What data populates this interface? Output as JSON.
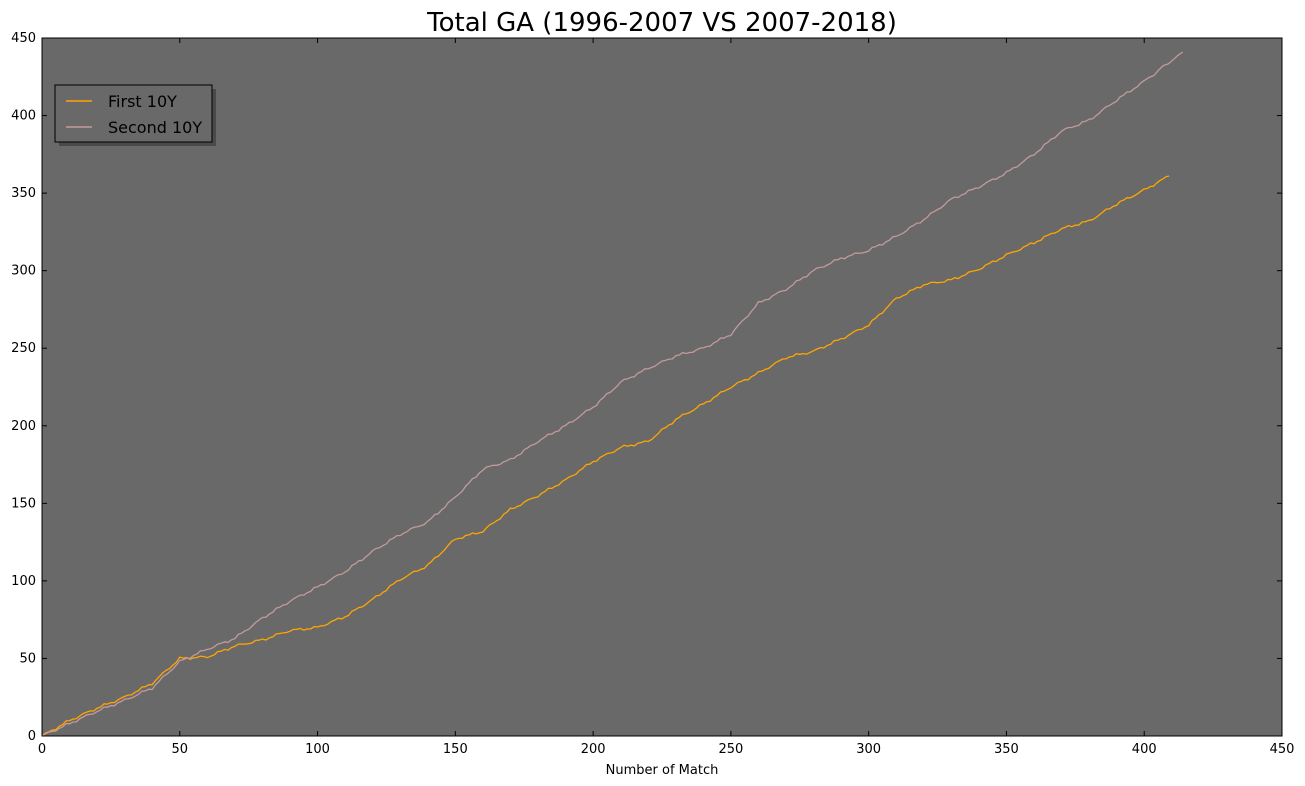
{
  "chart_data": {
    "type": "line",
    "title": "Total GA (1996-2007 VS 2007-2018)",
    "xlabel": "Number of Match",
    "ylabel": "",
    "xlim": [
      0,
      450
    ],
    "ylim": [
      0,
      450
    ],
    "xticks": [
      0,
      50,
      100,
      150,
      200,
      250,
      300,
      350,
      400,
      450
    ],
    "yticks": [
      0,
      50,
      100,
      150,
      200,
      250,
      300,
      350,
      400,
      450
    ],
    "grid": false,
    "legend_placement": "upper-left",
    "background_color": "#696969",
    "series": [
      {
        "name": "First 10Y",
        "color": "#FFA500",
        "x": [
          0,
          10,
          20,
          30,
          40,
          50,
          60,
          70,
          80,
          90,
          100,
          110,
          120,
          130,
          140,
          150,
          160,
          170,
          180,
          190,
          200,
          210,
          220,
          230,
          240,
          250,
          260,
          270,
          280,
          290,
          300,
          310,
          320,
          330,
          340,
          350,
          360,
          370,
          380,
          390,
          400,
          409
        ],
        "y": [
          0,
          10,
          18,
          25,
          34,
          50,
          51,
          58,
          62,
          68,
          70,
          77,
          88,
          101,
          110,
          127,
          132,
          146,
          155,
          165,
          177,
          186,
          190,
          204,
          214,
          225,
          234,
          244,
          248,
          256,
          265,
          282,
          291,
          294,
          301,
          310,
          318,
          327,
          332,
          343,
          352,
          361
        ]
      },
      {
        "name": "Second 10Y",
        "color": "#C39A9A",
        "x": [
          0,
          10,
          20,
          30,
          40,
          50,
          60,
          70,
          80,
          90,
          100,
          110,
          120,
          130,
          140,
          150,
          160,
          170,
          180,
          190,
          200,
          210,
          220,
          230,
          240,
          250,
          260,
          270,
          280,
          290,
          300,
          310,
          320,
          330,
          340,
          350,
          360,
          370,
          380,
          390,
          400,
          414
        ],
        "y": [
          0,
          8,
          16,
          23,
          31,
          48,
          56,
          63,
          76,
          87,
          96,
          106,
          119,
          130,
          138,
          154,
          172,
          178,
          190,
          200,
          212,
          228,
          237,
          245,
          250,
          259,
          279,
          288,
          300,
          308,
          313,
          322,
          333,
          346,
          354,
          363,
          375,
          390,
          397,
          410,
          422,
          441
        ]
      }
    ]
  }
}
